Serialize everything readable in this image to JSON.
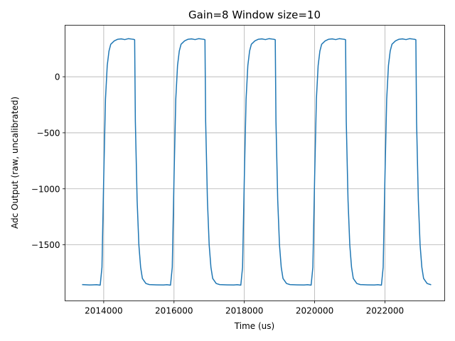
{
  "chart_data": {
    "type": "line",
    "title": "Gain=8 Window size=10",
    "xlabel": "Time (us)",
    "ylabel": "Adc Output (raw, uncalibrated)",
    "xlim": [
      2012900,
      2023700
    ],
    "ylim": [
      -2000,
      460
    ],
    "grid": true,
    "xticks": [
      2014000,
      2016000,
      2018000,
      2020000,
      2022000
    ],
    "xtick_labels": [
      "2014000",
      "2016000",
      "2018000",
      "2020000",
      "2022000"
    ],
    "yticks": [
      -1500,
      -1000,
      -500,
      0
    ],
    "ytick_labels": [
      "−1500",
      "−1000",
      "−500",
      "0"
    ],
    "series": [
      {
        "color": "#1f77b4",
        "x": [
          2013400,
          2013600,
          2013800,
          2013900,
          2013950,
          2014000,
          2014050,
          2014100,
          2014150,
          2014200,
          2014300,
          2014400,
          2014500,
          2014600,
          2014700,
          2014800,
          2014850,
          2014880,
          2014900,
          2014950,
          2015000,
          2015050,
          2015100,
          2015200,
          2015300,
          2015500,
          2015700,
          2015800,
          2015900,
          2015950,
          2016000,
          2016050,
          2016100,
          2016150,
          2016200,
          2016300,
          2016400,
          2016500,
          2016600,
          2016700,
          2016800,
          2016850,
          2016880,
          2016900,
          2016950,
          2017000,
          2017050,
          2017100,
          2017200,
          2017300,
          2017500,
          2017700,
          2017800,
          2017900,
          2017950,
          2018000,
          2018050,
          2018100,
          2018150,
          2018200,
          2018300,
          2018400,
          2018500,
          2018600,
          2018700,
          2018800,
          2018850,
          2018880,
          2018900,
          2018950,
          2019000,
          2019050,
          2019100,
          2019200,
          2019300,
          2019500,
          2019700,
          2019800,
          2019900,
          2019950,
          2020000,
          2020050,
          2020100,
          2020150,
          2020200,
          2020300,
          2020400,
          2020500,
          2020600,
          2020700,
          2020800,
          2020850,
          2020880,
          2020900,
          2020950,
          2021000,
          2021050,
          2021100,
          2021200,
          2021300,
          2021500,
          2021700,
          2021800,
          2021900,
          2021950,
          2022000,
          2022050,
          2022100,
          2022150,
          2022200,
          2022300,
          2022400,
          2022500,
          2022600,
          2022700,
          2022800,
          2022850,
          2022880,
          2022900,
          2022950,
          2023000,
          2023050,
          2023100,
          2023200,
          2023300
        ],
        "y": [
          -1855,
          -1858,
          -1856,
          -1860,
          -1700,
          -900,
          -200,
          100,
          230,
          290,
          320,
          335,
          338,
          332,
          340,
          336,
          334,
          330,
          -400,
          -1100,
          -1500,
          -1700,
          -1800,
          -1845,
          -1855,
          -1857,
          -1858,
          -1856,
          -1860,
          -1700,
          -900,
          -200,
          100,
          230,
          290,
          320,
          335,
          338,
          332,
          340,
          336,
          334,
          330,
          -400,
          -1100,
          -1500,
          -1700,
          -1800,
          -1845,
          -1855,
          -1857,
          -1858,
          -1856,
          -1860,
          -1700,
          -900,
          -200,
          100,
          230,
          290,
          320,
          335,
          338,
          332,
          340,
          336,
          334,
          330,
          -400,
          -1100,
          -1500,
          -1700,
          -1800,
          -1845,
          -1855,
          -1857,
          -1858,
          -1856,
          -1860,
          -1700,
          -900,
          -200,
          100,
          230,
          290,
          320,
          335,
          338,
          332,
          340,
          336,
          334,
          330,
          -400,
          -1100,
          -1500,
          -1700,
          -1800,
          -1845,
          -1855,
          -1857,
          -1858,
          -1856,
          -1860,
          -1700,
          -900,
          -200,
          100,
          230,
          290,
          320,
          335,
          338,
          332,
          340,
          336,
          334,
          330,
          -400,
          -1100,
          -1500,
          -1700,
          -1800,
          -1845,
          -1855
        ]
      }
    ]
  }
}
